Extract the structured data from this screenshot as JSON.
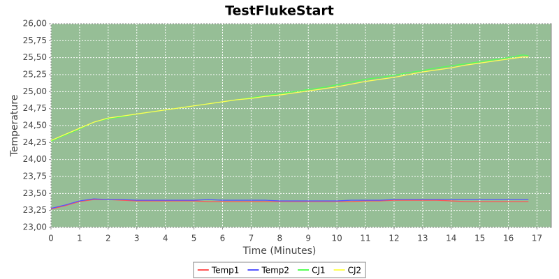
{
  "chart_data": {
    "type": "line",
    "title": "TestFlukeStart",
    "x_label": "Time (Minutes)",
    "y_label": "Temperature",
    "x": [
      0,
      0.5,
      1,
      1.5,
      2,
      2.5,
      3,
      3.5,
      4,
      4.5,
      5,
      5.5,
      6,
      6.5,
      7,
      7.5,
      8,
      8.5,
      9,
      9.5,
      10,
      10.5,
      11,
      11.5,
      12,
      12.5,
      13,
      13.5,
      14,
      14.5,
      15,
      15.5,
      16,
      16.5,
      16.7
    ],
    "series": [
      {
        "name": "Temp1",
        "color": "#ff5555",
        "values": [
          23.27,
          23.32,
          23.38,
          23.41,
          23.41,
          23.4,
          23.39,
          23.39,
          23.39,
          23.39,
          23.39,
          23.38,
          23.38,
          23.38,
          23.38,
          23.38,
          23.38,
          23.38,
          23.38,
          23.38,
          23.38,
          23.38,
          23.39,
          23.39,
          23.4,
          23.4,
          23.4,
          23.4,
          23.39,
          23.38,
          23.38,
          23.38,
          23.38,
          23.38,
          23.38
        ]
      },
      {
        "name": "Temp2",
        "color": "#5555ff",
        "values": [
          23.28,
          23.33,
          23.39,
          23.42,
          23.41,
          23.41,
          23.4,
          23.4,
          23.4,
          23.4,
          23.4,
          23.41,
          23.4,
          23.4,
          23.4,
          23.4,
          23.39,
          23.39,
          23.39,
          23.39,
          23.39,
          23.4,
          23.4,
          23.4,
          23.41,
          23.41,
          23.41,
          23.41,
          23.41,
          23.41,
          23.41,
          23.41,
          23.41,
          23.41,
          23.41
        ]
      },
      {
        "name": "CJ1",
        "color": "#55ff55",
        "values": [
          24.27,
          24.36,
          24.45,
          24.55,
          24.6,
          24.63,
          24.67,
          24.7,
          24.73,
          24.76,
          24.79,
          24.82,
          24.85,
          24.88,
          24.91,
          24.94,
          24.97,
          25.0,
          25.03,
          25.06,
          25.1,
          25.14,
          25.18,
          25.21,
          25.24,
          25.28,
          25.31,
          25.35,
          25.38,
          25.41,
          25.44,
          25.47,
          25.5,
          25.54,
          25.53
        ]
      },
      {
        "name": "CJ2",
        "color": "#ffff55",
        "values": [
          24.28,
          24.37,
          24.46,
          24.55,
          24.61,
          24.64,
          24.67,
          24.7,
          24.73,
          24.76,
          24.79,
          24.82,
          24.85,
          24.88,
          24.9,
          24.93,
          24.95,
          24.98,
          25.01,
          25.04,
          25.07,
          25.11,
          25.15,
          25.18,
          25.21,
          25.25,
          25.29,
          25.32,
          25.35,
          25.39,
          25.42,
          25.45,
          25.48,
          25.51,
          25.51
        ]
      }
    ],
    "xlim": [
      0,
      17.5
    ],
    "xticks": [
      0,
      1,
      2,
      3,
      4,
      5,
      6,
      7,
      8,
      9,
      10,
      11,
      12,
      13,
      14,
      15,
      16,
      17
    ],
    "ylim": [
      23,
      26
    ],
    "yticks": [
      {
        "value": 23,
        "label": "23,00"
      },
      {
        "value": 23.25,
        "label": "23,25"
      },
      {
        "value": 23.5,
        "label": "23,50"
      },
      {
        "value": 23.75,
        "label": "23,75"
      },
      {
        "value": 24,
        "label": "24,00"
      },
      {
        "value": 24.25,
        "label": "24,25"
      },
      {
        "value": 24.5,
        "label": "24,50"
      },
      {
        "value": 24.75,
        "label": "24,75"
      },
      {
        "value": 25,
        "label": "25,00"
      },
      {
        "value": 25.25,
        "label": "25,25"
      },
      {
        "value": 25.5,
        "label": "25,50"
      },
      {
        "value": 25.75,
        "label": "25,75"
      },
      {
        "value": 26,
        "label": "26,00"
      }
    ],
    "grid": true,
    "plot_background": "#96be96",
    "legend": "bottom"
  }
}
